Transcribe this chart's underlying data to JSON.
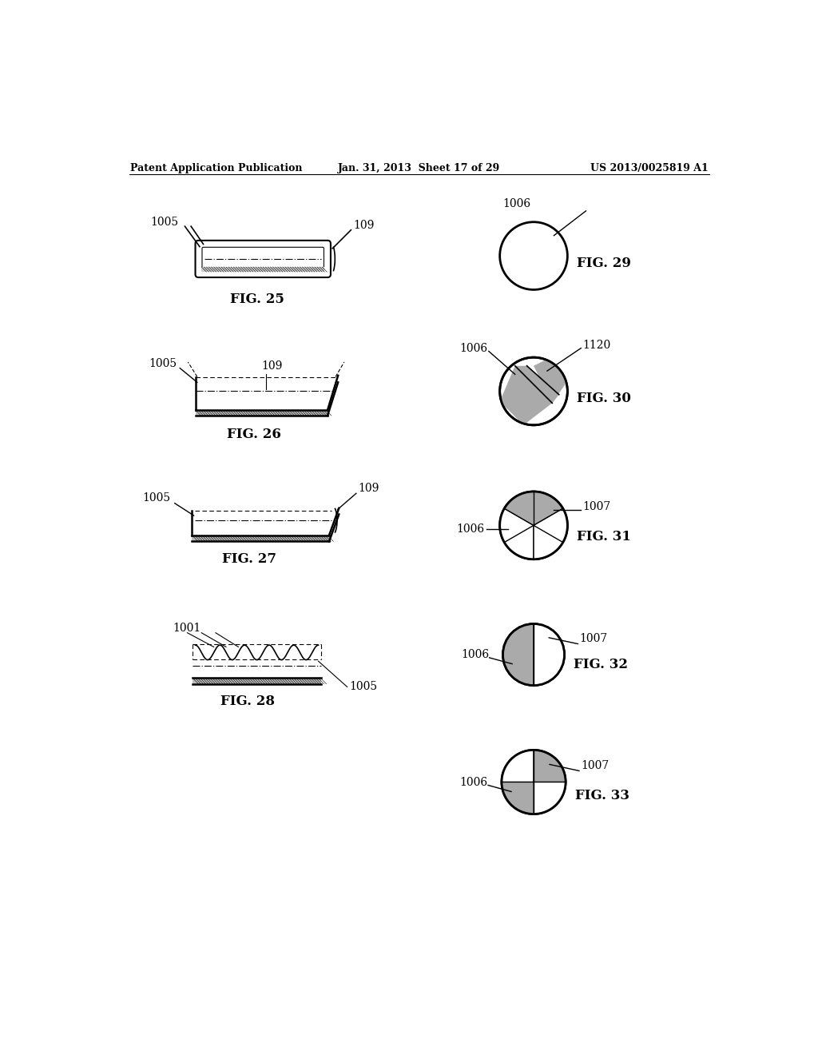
{
  "bg_color": "#ffffff",
  "text_color": "#000000",
  "header_left": "Patent Application Publication",
  "header_center": "Jan. 31, 2013  Sheet 17 of 29",
  "header_right": "US 2013/0025819 A1"
}
